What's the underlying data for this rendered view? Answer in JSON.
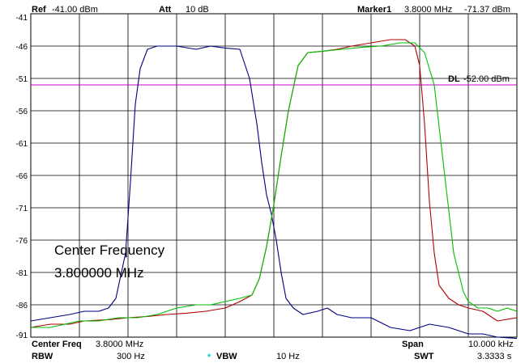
{
  "header": {
    "ref_label": "Ref",
    "ref_value": "-41.00 dBm",
    "att_label": "Att",
    "att_value": "10 dB",
    "marker_label": "Marker1",
    "marker_freq": "3.8000 MHz",
    "marker_level": "-71.37 dBm"
  },
  "footer": {
    "center_freq_label": "Center Freq",
    "center_freq_value": "3.8000 MHz",
    "span_label": "Span",
    "span_value": "10.000 kHz",
    "rbw_label": "RBW",
    "rbw_value": "300 Hz",
    "vbw_star": "*",
    "vbw_label": "VBW",
    "vbw_value": "10 Hz",
    "swt_label": "SWT",
    "swt_value": "3.3333 s"
  },
  "annotation": {
    "line1": "Center Frequency",
    "line2": "3.800000 MHz"
  },
  "colors": {
    "background": "#ffffff",
    "grid": "#000000",
    "display_line": "#cc00cc",
    "vbw_star": "#00cccc"
  },
  "chart_data": {
    "type": "line",
    "title": "",
    "xlabel": "",
    "ylabel": "",
    "x_unit": "kHz offset from center",
    "xlim": [
      -5,
      5
    ],
    "ylim": [
      -91,
      -41
    ],
    "y_ticks": [
      -41,
      -46,
      -51,
      -56,
      -61,
      -66,
      -71,
      -76,
      -81,
      -86,
      -91
    ],
    "y_tick_labels": [
      "-41",
      "-46",
      "-51",
      "-56",
      "-61",
      "-66",
      "-71",
      "-76",
      "-81",
      "-86",
      "-91"
    ],
    "grid": true,
    "display_line": {
      "label": "DL",
      "value_label": "-52.00 dBm",
      "level": -52
    },
    "series": [
      {
        "color": "#000080",
        "x": [
          -5.0,
          -4.6,
          -4.2,
          -3.9,
          -3.6,
          -3.4,
          -3.25,
          -3.05,
          -2.95,
          -2.85,
          -2.75,
          -2.6,
          -2.4,
          -2.0,
          -1.6,
          -1.3,
          -1.0,
          -0.7,
          -0.5,
          -0.35,
          -0.25,
          -0.15,
          -0.05,
          0.05,
          0.15,
          0.25,
          0.4,
          0.6,
          0.9,
          1.1,
          1.3,
          1.6,
          2.0,
          2.4,
          2.8,
          3.2,
          3.6,
          4.0,
          4.3,
          4.6,
          5.0
        ],
        "y": [
          -88.5,
          -88.0,
          -87.5,
          -87.0,
          -87.0,
          -86.5,
          -85.0,
          -78.0,
          -67.0,
          -55.0,
          -49.5,
          -46.5,
          -46.0,
          -46.0,
          -46.5,
          -46.0,
          -46.3,
          -46.5,
          -51.0,
          -58.0,
          -64.0,
          -69.0,
          -72.0,
          -76.0,
          -81.0,
          -85.0,
          -86.5,
          -87.5,
          -87.0,
          -86.5,
          -87.5,
          -88.0,
          -88.0,
          -89.5,
          -90.0,
          -89.0,
          -89.5,
          -90.5,
          -90.5,
          -91.0,
          -91.2
        ]
      },
      {
        "color": "#b00000",
        "x": [
          -5.0,
          -4.6,
          -4.2,
          -3.9,
          -3.4,
          -3.0,
          -2.6,
          -2.2,
          -1.8,
          -1.4,
          -1.0,
          -0.7,
          -0.45,
          -0.3,
          -0.15,
          0.0,
          0.15,
          0.3,
          0.5,
          0.7,
          1.0,
          1.3,
          1.6,
          2.0,
          2.4,
          2.7,
          2.9,
          3.0,
          3.1,
          3.2,
          3.3,
          3.4,
          3.6,
          3.8,
          4.0,
          4.3,
          4.6,
          5.0
        ],
        "y": [
          -89.5,
          -89.0,
          -89.0,
          -88.5,
          -88.3,
          -88.0,
          -87.8,
          -87.5,
          -87.3,
          -87.0,
          -86.5,
          -85.5,
          -84.5,
          -82.0,
          -77.0,
          -70.5,
          -63.0,
          -56.0,
          -49.0,
          -47.0,
          -46.8,
          -46.5,
          -46.0,
          -45.5,
          -45.0,
          -45.0,
          -46.0,
          -49.0,
          -58.0,
          -70.0,
          -78.0,
          -83.0,
          -85.0,
          -86.0,
          -86.5,
          -87.0,
          -88.5,
          -88.0
        ]
      },
      {
        "color": "#00c000",
        "x": [
          -5.0,
          -4.6,
          -4.3,
          -4.0,
          -3.6,
          -3.2,
          -2.8,
          -2.4,
          -2.2,
          -2.0,
          -1.6,
          -1.3,
          -1.0,
          -0.7,
          -0.45,
          -0.3,
          -0.15,
          0.0,
          0.15,
          0.3,
          0.5,
          0.7,
          1.0,
          1.4,
          1.8,
          2.2,
          2.6,
          2.9,
          3.1,
          3.3,
          3.5,
          3.7,
          3.9,
          4.0,
          4.2,
          4.4,
          4.6,
          4.8,
          5.0
        ],
        "y": [
          -89.5,
          -89.5,
          -89.0,
          -88.5,
          -88.5,
          -88.0,
          -88.0,
          -87.5,
          -87.0,
          -86.5,
          -86.0,
          -86.0,
          -85.5,
          -85.0,
          -84.5,
          -82.0,
          -77.0,
          -70.5,
          -63.0,
          -56.0,
          -49.0,
          -47.0,
          -46.8,
          -46.5,
          -46.2,
          -46.0,
          -45.5,
          -45.5,
          -47.0,
          -52.0,
          -65.0,
          -78.0,
          -84.0,
          -85.5,
          -86.5,
          -86.5,
          -87.0,
          -86.5,
          -87.0
        ]
      }
    ]
  }
}
